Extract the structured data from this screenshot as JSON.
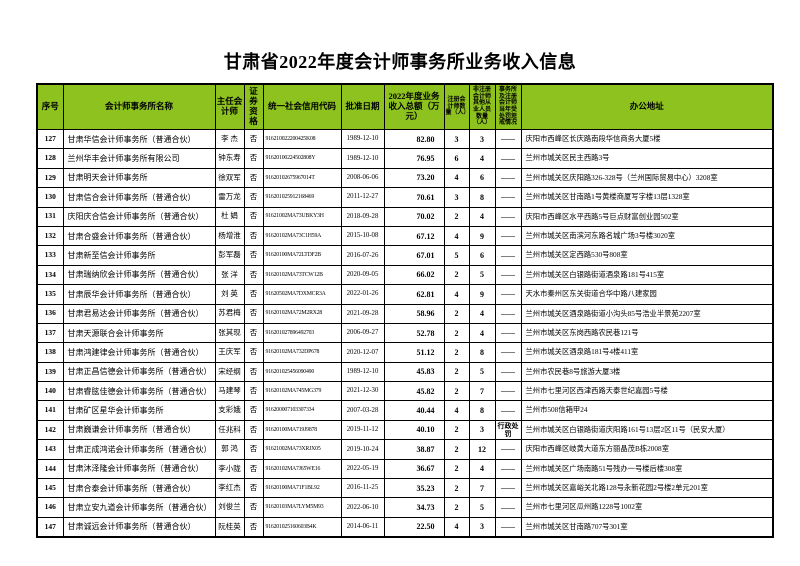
{
  "page": {
    "title": "甘肃省2022年度会计师事务所业务收入信息"
  },
  "colors": {
    "header_bg": "#8dc21f",
    "border": "#000000",
    "text": "#000000"
  },
  "table": {
    "columns": [
      {
        "key": "no",
        "label": "序号"
      },
      {
        "key": "name",
        "label": "会计师事务所名称"
      },
      {
        "key": "chief",
        "label": "主任会计师"
      },
      {
        "key": "securities",
        "label": "证券资格"
      },
      {
        "key": "code",
        "label": "统一社会信用代码"
      },
      {
        "key": "date",
        "label": "批准日期"
      },
      {
        "key": "revenue",
        "label": "2022年度业务收入总额（万元）"
      },
      {
        "key": "cpa",
        "label": "注册会计师数量（人）"
      },
      {
        "key": "staff",
        "label": "非注册会计师其他从业人员数量（人）"
      },
      {
        "key": "penalty",
        "label": "事务所及注册会计师当年受处罚惩戒情况"
      },
      {
        "key": "address",
        "label": "办公地址"
      }
    ],
    "rows": [
      {
        "no": "127",
        "name": "甘肃华信会计师事务所（普通合伙）",
        "chief": "李 杰",
        "securities": "否",
        "code": "916210022200425K08",
        "date": "1989-12-10",
        "revenue": "82.80",
        "cpa": "3",
        "staff": "3",
        "penalty": "——",
        "address": "庆阳市西峰区长庆路南段华信商务大厦5楼"
      },
      {
        "no": "128",
        "name": "兰州华丰会计师事务所有限公司",
        "chief": "钟东寿",
        "securities": "否",
        "code": "91620100224502808Y",
        "date": "1989-12-10",
        "revenue": "76.95",
        "cpa": "6",
        "staff": "4",
        "penalty": "——",
        "address": "兰州市城关区民主西路3号"
      },
      {
        "no": "129",
        "name": "甘肃明天会计师事务所",
        "chief": "徐双军",
        "securities": "否",
        "code": "91620102675967014T",
        "date": "2008-06-06",
        "revenue": "73.20",
        "cpa": "4",
        "staff": "6",
        "penalty": "——",
        "address": "兰州市城关区庆阳路326-328号（兰州国际贸易中心）3208室"
      },
      {
        "no": "130",
        "name": "甘肃信合会计师事务所（普通合伙）",
        "chief": "雷万龙",
        "securities": "否",
        "code": "916201025912168469",
        "date": "2011-12-27",
        "revenue": "70.61",
        "cpa": "3",
        "staff": "8",
        "penalty": "——",
        "address": "兰州市城关区甘南路1号黄楼商厦写字楼13层1328室"
      },
      {
        "no": "131",
        "name": "庆阳庆合信会计师事务所（普通合伙）",
        "chief": "杜 娟",
        "securities": "否",
        "code": "91621002MA73UBKY3H",
        "date": "2018-09-28",
        "revenue": "70.02",
        "cpa": "2",
        "staff": "4",
        "penalty": "——",
        "address": "庆阳市西峰区水平西路5号巨点财富创业园502室"
      },
      {
        "no": "132",
        "name": "甘肃合盛会计师事务所（普通合伙）",
        "chief": "杨增淮",
        "securities": "否",
        "code": "91620102MA73C1H59A",
        "date": "2015-10-08",
        "revenue": "67.12",
        "cpa": "4",
        "staff": "9",
        "penalty": "——",
        "address": "兰州市城关区南滨河东路名城广场3号楼3020室"
      },
      {
        "no": "133",
        "name": "甘肃新至信会计师事务所",
        "chief": "彭军磊",
        "securities": "否",
        "code": "91620100MA72LTDF2B",
        "date": "2016-07-26",
        "revenue": "67.01",
        "cpa": "5",
        "staff": "6",
        "penalty": "——",
        "address": "兰州市城关区定西路530号808室"
      },
      {
        "no": "134",
        "name": "甘肃瑞纳欣会计师事务所（普通合伙）",
        "chief": "张 洋",
        "securities": "否",
        "code": "91620102MA73TCW12B",
        "date": "2020-09-05",
        "revenue": "66.02",
        "cpa": "2",
        "staff": "5",
        "penalty": "——",
        "address": "兰州市城关区白银路街道酒泉路181号415室"
      },
      {
        "no": "135",
        "name": "甘肃辰华会计师事务所（普通合伙）",
        "chief": "刘 英",
        "securities": "否",
        "code": "91620502MA7DXMCR3A",
        "date": "2022-01-26",
        "revenue": "62.81",
        "cpa": "4",
        "staff": "9",
        "penalty": "——",
        "address": "天水市秦州区东关街道合华中路八建家园"
      },
      {
        "no": "136",
        "name": "甘肃君易达会计师事务所（普通合伙）",
        "chief": "苏君梅",
        "securities": "否",
        "code": "91620102MA72M2RX28",
        "date": "2021-09-28",
        "revenue": "58.96",
        "cpa": "2",
        "staff": "4",
        "penalty": "——",
        "address": "兰州市城关区酒泉路街道小沟头85号浩业半景苑2207室"
      },
      {
        "no": "137",
        "name": "甘肃天源联合会计师事务所",
        "chief": "张其现",
        "securities": "否",
        "code": "916201027896492703",
        "date": "2006-09-27",
        "revenue": "52.78",
        "cpa": "2",
        "staff": "4",
        "penalty": "——",
        "address": "兰州市城关区东岗西路农民巷121号"
      },
      {
        "no": "138",
        "name": "甘肃鸿建律会计师事务所（普通合伙）",
        "chief": "王庆军",
        "securities": "否",
        "code": "91620102MA732DP678",
        "date": "2020-12-07",
        "revenue": "51.12",
        "cpa": "2",
        "staff": "8",
        "penalty": "——",
        "address": "兰州市城关区酒泉路181号4楼411室"
      },
      {
        "no": "139",
        "name": "甘肃正昌信德会计师事务所（普通合伙）",
        "chief": "宋经纲",
        "securities": "否",
        "code": "916201025456090490",
        "date": "1989-12-10",
        "revenue": "45.83",
        "cpa": "2",
        "staff": "5",
        "penalty": "——",
        "address": "兰州市农民巷8号旅游大厦3楼"
      },
      {
        "no": "140",
        "name": "甘肃睿胘佳德会计师事务所（普通合伙）",
        "chief": "马建琴",
        "securities": "否",
        "code": "91620102MA745MG379",
        "date": "2021-12-30",
        "revenue": "45.82",
        "cpa": "2",
        "staff": "7",
        "penalty": "——",
        "address": "兰州市七里河区西津西路天泰世纪嘉园5号楼"
      },
      {
        "no": "141",
        "name": "甘肃矿区星华会计师事务所",
        "chief": "支彩娥",
        "securities": "否",
        "code": "916200007103307334",
        "date": "2007-03-28",
        "revenue": "40.44",
        "cpa": "4",
        "staff": "8",
        "penalty": "——",
        "address": "兰州市508信箱甲24"
      },
      {
        "no": "142",
        "name": "甘肃巍谦会计师事务所（普通合伙）",
        "chief": "任兆科",
        "securities": "否",
        "code": "91620100MA719J9878",
        "date": "2019-11-12",
        "revenue": "40.10",
        "cpa": "2",
        "staff": "3",
        "penalty": "行政处罚",
        "address": "兰州市城关区白银路街道庆阳路161号13层2区11号（民安大厦）"
      },
      {
        "no": "143",
        "name": "甘肃正成鸿诺会计师事务所（普通合伙）",
        "chief": "郭 鸿",
        "securities": "否",
        "code": "91621002MA73XRJX05",
        "date": "2019-10-24",
        "revenue": "38.87",
        "cpa": "2",
        "staff": "12",
        "penalty": "——",
        "address": "庆阳市西峰区岐黄大道东方丽晶茂B栋2008室"
      },
      {
        "no": "144",
        "name": "甘肃沐泽隆会计师事务所（普通合伙）",
        "chief": "李小陇",
        "securities": "否",
        "code": "91620102MA7J65WE16",
        "date": "2022-05-19",
        "revenue": "36.67",
        "cpa": "2",
        "staff": "4",
        "penalty": "——",
        "address": "兰州市城关区广场南路51号残办一号楼后楼308室"
      },
      {
        "no": "145",
        "name": "甘肃合泰会计师事务所（普通合伙）",
        "chief": "李红杰",
        "securities": "否",
        "code": "91620100MA71F1BL92",
        "date": "2016-11-25",
        "revenue": "35.23",
        "cpa": "2",
        "staff": "7",
        "penalty": "——",
        "address": "兰州市城关区嘉峪关北路128号永新花园2号楼2单元201室"
      },
      {
        "no": "146",
        "name": "甘肃立安九道会计师事务所（普通合伙）",
        "chief": "刘俊兰",
        "securities": "否",
        "code": "91620103MA7LYM5M93",
        "date": "2022-06-10",
        "revenue": "34.73",
        "cpa": "2",
        "staff": "5",
        "penalty": "——",
        "address": "兰州市七里河区瓜州路1228号1002室"
      },
      {
        "no": "147",
        "name": "甘肃诚远会计师事务所（普通合伙）",
        "chief": "阮桂英",
        "securities": "否",
        "code": "916201025160603B4K",
        "date": "2014-06-11",
        "revenue": "22.50",
        "cpa": "4",
        "staff": "3",
        "penalty": "——",
        "address": "兰州市城关区甘南路707号301室"
      }
    ]
  }
}
